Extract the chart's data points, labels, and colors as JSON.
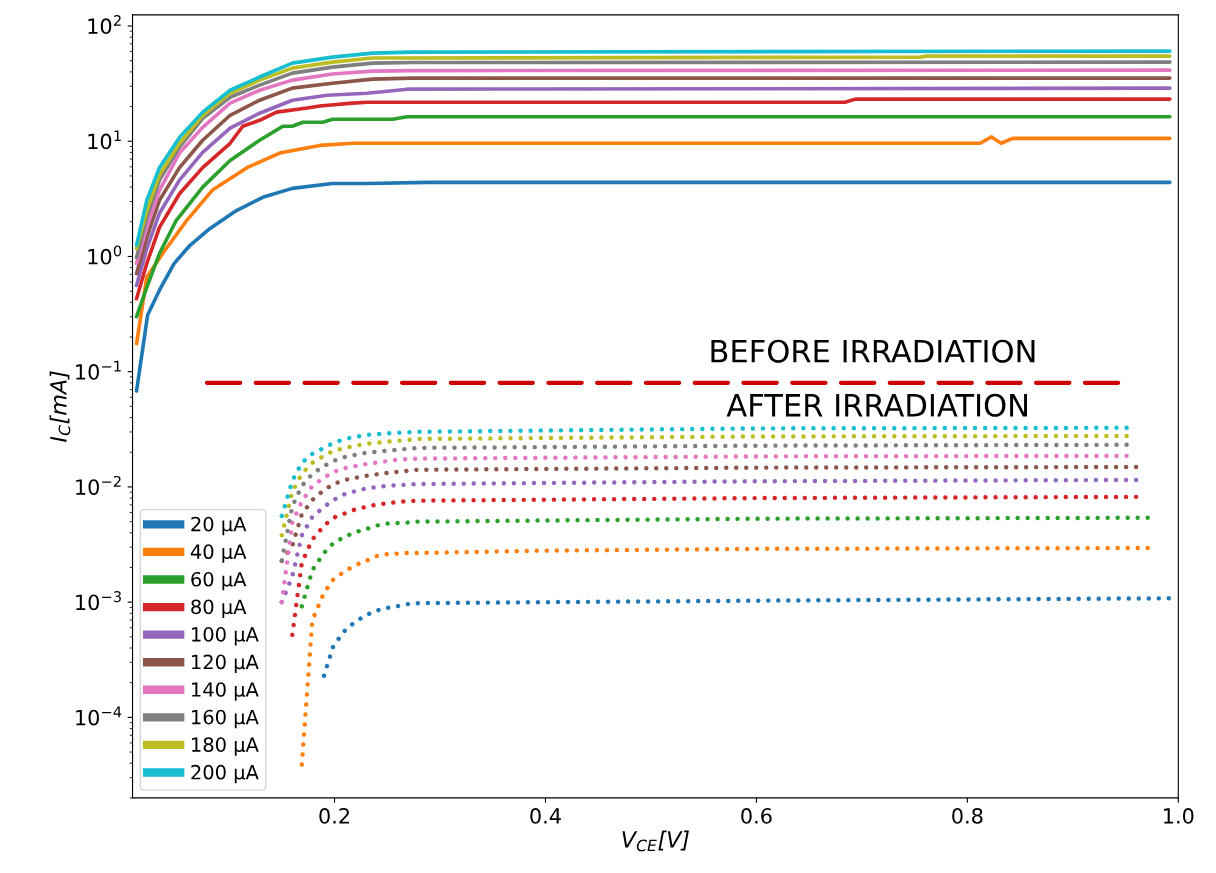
{
  "chart_data": {
    "type": "line",
    "xlabel": "V$_{CE}$[V]",
    "ylabel": "I$_{C}$[mA]",
    "log": "y",
    "line_style": "solid",
    "legend": "bottom left",
    "xlim": [
      0.0085,
      1.0
    ],
    "xticks": [
      0.2,
      0.4,
      0.6,
      0.8,
      {
        "value": 1.0,
        "label": "1.0"
      }
    ],
    "ylim": [
      2e-05,
      125
    ],
    "yticks": [
      {
        "value": 0.0001,
        "label": "10$^{−4}$"
      },
      {
        "value": 0.001,
        "label": "10$^{−3}$"
      },
      {
        "value": 0.01,
        "label": "10$^{−2}$"
      },
      {
        "value": 0.1,
        "label": "10$^{−1}$"
      },
      {
        "value": 1,
        "label": "10$^{0}$"
      },
      {
        "value": 10,
        "label": "10$^{1}$"
      },
      {
        "value": 100,
        "label": "10$^{2}$"
      }
    ],
    "annotations": [
      "BEFORE IRRADIATION",
      "AFTER IRRADIATION"
    ],
    "series": [
      {
        "name": "20 μA",
        "color": "#1f77b4",
        "x": [
          0.0123,
          0.0228,
          0.034,
          0.048,
          0.063,
          0.082,
          0.107,
          0.132,
          0.16,
          0.198,
          0.231,
          0.288,
          0.992
        ],
        "values": [
          0.068,
          0.31,
          0.51,
          0.87,
          1.25,
          1.75,
          2.5,
          3.26,
          3.9,
          4.3,
          4.3,
          4.4,
          4.4
        ]
      },
      {
        "name": "40 μA",
        "color": "#ff7f0e",
        "x": [
          0.0123,
          0.022,
          0.037,
          0.06,
          0.084,
          0.117,
          0.148,
          0.186,
          0.217,
          0.812,
          0.823,
          0.832,
          0.843,
          0.992
        ],
        "values": [
          0.175,
          0.66,
          1.06,
          2.06,
          3.75,
          5.9,
          7.9,
          9.2,
          9.6,
          9.6,
          10.9,
          9.6,
          10.6,
          10.6
        ]
      },
      {
        "name": "60 μA",
        "color": "#2ca02c",
        "x": [
          0.0123,
          0.022,
          0.034,
          0.05,
          0.075,
          0.101,
          0.129,
          0.151,
          0.16,
          0.17,
          0.189,
          0.198,
          0.255,
          0.269,
          0.992
        ],
        "values": [
          0.3,
          0.54,
          1.06,
          2.06,
          4.0,
          6.8,
          10.2,
          13.5,
          13.5,
          14.6,
          14.6,
          15.5,
          15.5,
          16.3,
          16.3
        ]
      },
      {
        "name": "80 μA",
        "color": "#d62728",
        "x": [
          0.0123,
          0.022,
          0.034,
          0.053,
          0.075,
          0.101,
          0.113,
          0.129,
          0.145,
          0.174,
          0.186,
          0.217,
          0.231,
          0.684,
          0.694,
          0.992
        ],
        "values": [
          0.43,
          0.87,
          1.79,
          3.5,
          5.9,
          9.6,
          13.5,
          15.2,
          17.9,
          19.4,
          20.2,
          21.4,
          21.8,
          21.8,
          23.2,
          23.2
        ]
      },
      {
        "name": "100 μA",
        "color": "#9467bd",
        "x": [
          0.0123,
          0.022,
          0.034,
          0.053,
          0.075,
          0.101,
          0.129,
          0.16,
          0.193,
          0.231,
          0.269,
          0.992
        ],
        "values": [
          0.56,
          1.17,
          2.37,
          4.6,
          8.0,
          13.0,
          17.5,
          22.7,
          25.1,
          26.1,
          28.3,
          28.9
        ]
      },
      {
        "name": "120 μA",
        "color": "#8c564b",
        "x": [
          0.0123,
          0.022,
          0.034,
          0.053,
          0.075,
          0.101,
          0.129,
          0.16,
          0.198,
          0.236,
          0.274,
          0.992
        ],
        "values": [
          0.71,
          1.46,
          3.07,
          5.9,
          10.2,
          16.8,
          22.7,
          28.9,
          31.9,
          34.6,
          35.3,
          35.3
        ]
      },
      {
        "name": "140 μA",
        "color": "#e377c2",
        "x": [
          0.0123,
          0.022,
          0.034,
          0.053,
          0.075,
          0.101,
          0.129,
          0.16,
          0.198,
          0.236,
          0.274,
          0.992
        ],
        "values": [
          0.87,
          1.79,
          3.75,
          7.9,
          13.2,
          21.4,
          27.7,
          33.9,
          38.3,
          40.6,
          41.0,
          41.4
        ]
      },
      {
        "name": "160 μA",
        "color": "#7f7f7f",
        "x": [
          0.0123,
          0.022,
          0.034,
          0.053,
          0.075,
          0.101,
          0.129,
          0.16,
          0.198,
          0.236,
          0.274,
          0.992
        ],
        "values": [
          0.98,
          2.18,
          4.6,
          8.9,
          15.8,
          24.1,
          30.7,
          39.0,
          44.0,
          47.6,
          48.2,
          48.6
        ]
      },
      {
        "name": "180 μA",
        "color": "#bcbd22",
        "x": [
          0.0123,
          0.022,
          0.034,
          0.053,
          0.075,
          0.101,
          0.129,
          0.16,
          0.198,
          0.236,
          0.755,
          0.762,
          0.992
        ],
        "values": [
          1.17,
          2.5,
          5.1,
          9.6,
          16.8,
          26.1,
          33.9,
          43.1,
          48.6,
          52.7,
          53.7,
          54.8,
          54.8
        ]
      },
      {
        "name": "200 μA",
        "color": "#17becf",
        "x": [
          0.0123,
          0.022,
          0.034,
          0.053,
          0.075,
          0.101,
          0.129,
          0.16,
          0.198,
          0.236,
          0.274,
          0.992
        ],
        "values": [
          1.25,
          3.07,
          5.9,
          10.8,
          17.9,
          27.7,
          36.1,
          47.6,
          53.7,
          58.2,
          59.4,
          60.6
        ]
      },
      {
        "color": "#1f77b4",
        "line_style": "dotted",
        "x": [
          0.19,
          0.199,
          0.21,
          0.22,
          0.23,
          0.239,
          0.249,
          0.259,
          0.269,
          0.279,
          0.4,
          0.6,
          0.991
        ],
        "values": [
          0.00023,
          0.00042,
          0.00057,
          0.00068,
          0.00077,
          0.00084,
          0.00089,
          0.00092,
          0.00096,
          0.00098,
          0.001,
          0.00103,
          0.00108
        ]
      },
      {
        "color": "#ff7f0e",
        "line_style": "dotted",
        "x": [
          0.169,
          0.179,
          0.19,
          0.199,
          0.21,
          0.22,
          0.23,
          0.239,
          0.249,
          0.269,
          0.279,
          0.4,
          0.6,
          0.971
        ],
        "values": [
          3.9e-05,
          0.0007,
          0.0012,
          0.00158,
          0.00186,
          0.0021,
          0.00228,
          0.0025,
          0.0026,
          0.00267,
          0.00267,
          0.0028,
          0.0029,
          0.00295
        ]
      },
      {
        "color": "#2ca02c",
        "line_style": "dotted",
        "x": [
          0.169,
          0.179,
          0.19,
          0.199,
          0.21,
          0.22,
          0.23,
          0.239,
          0.249,
          0.269,
          0.279,
          0.6,
          0.971
        ],
        "values": [
          0.00092,
          0.0019,
          0.00267,
          0.00326,
          0.0037,
          0.00406,
          0.0043,
          0.0046,
          0.0048,
          0.0049,
          0.005,
          0.0053,
          0.0054
        ]
      },
      {
        "color": "#d62728",
        "line_style": "dotted",
        "x": [
          0.16,
          0.169,
          0.179,
          0.19,
          0.199,
          0.21,
          0.22,
          0.23,
          0.239,
          0.259,
          0.279,
          0.6,
          0.96
        ],
        "values": [
          0.00052,
          0.0022,
          0.0035,
          0.0046,
          0.0054,
          0.0059,
          0.0064,
          0.0067,
          0.007,
          0.0074,
          0.0076,
          0.008,
          0.0082
        ]
      },
      {
        "color": "#9467bd",
        "line_style": "dotted",
        "x": [
          0.15,
          0.16,
          0.169,
          0.179,
          0.19,
          0.199,
          0.21,
          0.22,
          0.23,
          0.249,
          0.279,
          0.6,
          0.96
        ],
        "values": [
          0.001,
          0.00168,
          0.0038,
          0.0055,
          0.0067,
          0.0077,
          0.0087,
          0.0092,
          0.0097,
          0.0102,
          0.0106,
          0.0112,
          0.0115
        ]
      },
      {
        "color": "#8c564b",
        "line_style": "dotted",
        "x": [
          0.15,
          0.16,
          0.169,
          0.179,
          0.19,
          0.199,
          0.21,
          0.23,
          0.249,
          0.279,
          0.6,
          0.96
        ],
        "values": [
          0.00228,
          0.0031,
          0.0058,
          0.0077,
          0.0094,
          0.0106,
          0.0115,
          0.0125,
          0.0132,
          0.0141,
          0.0147,
          0.0149
        ]
      },
      {
        "color": "#e377c2",
        "line_style": "dotted",
        "x": [
          0.15,
          0.16,
          0.169,
          0.179,
          0.19,
          0.199,
          0.21,
          0.23,
          0.259,
          0.279,
          0.6,
          0.951
        ],
        "values": [
          0.001,
          0.0049,
          0.0075,
          0.0102,
          0.012,
          0.0135,
          0.0146,
          0.0158,
          0.0172,
          0.0176,
          0.0184,
          0.0186
        ]
      },
      {
        "color": "#7f7f7f",
        "line_style": "dotted",
        "x": [
          0.15,
          0.16,
          0.169,
          0.179,
          0.19,
          0.199,
          0.21,
          0.23,
          0.259,
          0.279,
          0.6,
          0.951
        ],
        "values": [
          0.0023,
          0.0068,
          0.0102,
          0.013,
          0.0152,
          0.0168,
          0.0182,
          0.0198,
          0.021,
          0.0218,
          0.0228,
          0.0232
        ]
      },
      {
        "color": "#bcbd22",
        "line_style": "dotted",
        "x": [
          0.15,
          0.16,
          0.169,
          0.179,
          0.19,
          0.199,
          0.21,
          0.23,
          0.259,
          0.279,
          0.6,
          0.951
        ],
        "values": [
          0.0038,
          0.0091,
          0.013,
          0.0162,
          0.0186,
          0.0206,
          0.0218,
          0.0237,
          0.0251,
          0.0261,
          0.0274,
          0.0277
        ]
      },
      {
        "color": "#17becf",
        "line_style": "dotted",
        "x": [
          0.15,
          0.16,
          0.169,
          0.179,
          0.19,
          0.199,
          0.21,
          0.23,
          0.259,
          0.279,
          0.6,
          0.951
        ],
        "values": [
          0.0056,
          0.0113,
          0.0162,
          0.0194,
          0.0218,
          0.0241,
          0.0261,
          0.0283,
          0.0295,
          0.0301,
          0.0322,
          0.0326
        ]
      },
      {
        "color": "#cc0000",
        "line_style": "dashed",
        "x": [
          0.079,
          0.943
        ],
        "values": [
          0.08,
          0.08
        ]
      }
    ]
  }
}
